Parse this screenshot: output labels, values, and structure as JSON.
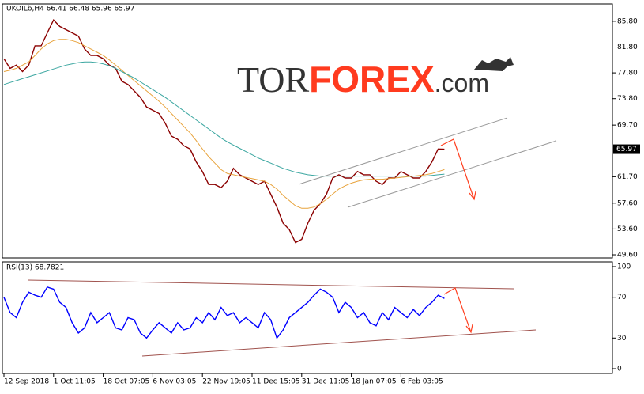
{
  "logo": [
    "TOR",
    "FOREX",
    ".com"
  ],
  "chart_data": [
    {
      "type": "line",
      "title": "UKOILb,H4  66.41 66.48 65.96 65.97",
      "categories": [
        "12 Sep 2018",
        null,
        null,
        null,
        null,
        null,
        null,
        null,
        "1 Oct 11:05",
        null,
        null,
        null,
        null,
        null,
        null,
        null,
        "18 Oct 07:05",
        null,
        null,
        null,
        null,
        null,
        null,
        null,
        "6 Nov 03:05",
        null,
        null,
        null,
        null,
        null,
        null,
        null,
        "22 Nov 19:05",
        null,
        null,
        null,
        null,
        null,
        null,
        null,
        "11 Dec 15:05",
        null,
        null,
        null,
        null,
        null,
        null,
        null,
        "31 Dec 11:05",
        null,
        null,
        null,
        null,
        null,
        null,
        null,
        "18 Jan 07:05",
        null,
        null,
        null,
        null,
        null,
        null,
        null,
        "6 Feb 03:05",
        null,
        null,
        null,
        null,
        null,
        null,
        null
      ],
      "series": [
        {
          "color": "#8b0000",
          "values": [
            80,
            78.5,
            79,
            78,
            79,
            82,
            82,
            84,
            86,
            85,
            84.5,
            84,
            83.5,
            81.5,
            80.5,
            80.5,
            80,
            79,
            78.5,
            76.5,
            76,
            75,
            74,
            72.5,
            72,
            71.5,
            70,
            68,
            67.5,
            66.5,
            66,
            64,
            62.5,
            60.5,
            60.5,
            60,
            61,
            63,
            62,
            61.5,
            61,
            60.5,
            61,
            59,
            57,
            54.5,
            53.5,
            51.5,
            52,
            54.5,
            56.5,
            57.5,
            59,
            61.5,
            62,
            61.5,
            61.5,
            62.5,
            62,
            62,
            61,
            60.5,
            61.5,
            61.5,
            62.5,
            62,
            61.5,
            61.5,
            62.5,
            64,
            66,
            65.97
          ]
        },
        {
          "color": "#e8a33c",
          "values": [
            78,
            78.2,
            78.5,
            79,
            79.5,
            80.5,
            81.5,
            82.3,
            82.8,
            83,
            83,
            82.8,
            82.5,
            82,
            81.5,
            81,
            80.5,
            79.8,
            79,
            78.2,
            77.4,
            76.6,
            75.8,
            75,
            74.2,
            73.4,
            72.5,
            71.5,
            70.5,
            69.5,
            68.5,
            67.3,
            66,
            64.8,
            63.8,
            62.8,
            62.2,
            62,
            61.8,
            61.6,
            61.4,
            61.2,
            61,
            60.5,
            59.8,
            58.8,
            58,
            57.2,
            56.8,
            56.8,
            57,
            57.5,
            58.2,
            59,
            59.8,
            60.3,
            60.7,
            61,
            61.2,
            61.3,
            61.3,
            61.3,
            61.4,
            61.5,
            61.6,
            61.7,
            61.8,
            61.9,
            62,
            62.2,
            62.5,
            62.8
          ]
        },
        {
          "color": "#3aa6a0",
          "values": [
            76,
            76.3,
            76.6,
            76.9,
            77.2,
            77.5,
            77.8,
            78.1,
            78.4,
            78.7,
            79,
            79.2,
            79.4,
            79.5,
            79.5,
            79.4,
            79.2,
            78.9,
            78.5,
            78,
            77.5,
            77,
            76.4,
            75.8,
            75.2,
            74.6,
            74,
            73.3,
            72.6,
            71.9,
            71.2,
            70.5,
            69.8,
            69.1,
            68.4,
            67.7,
            67.1,
            66.6,
            66.1,
            65.6,
            65.1,
            64.6,
            64.2,
            63.8,
            63.4,
            63,
            62.7,
            62.4,
            62.2,
            62,
            61.9,
            61.8,
            61.8,
            61.8,
            61.8,
            61.8,
            61.8,
            61.8,
            61.8,
            61.8,
            61.8,
            61.8,
            61.8,
            61.8,
            61.8,
            61.8,
            61.8,
            61.8,
            61.8,
            61.9,
            62,
            62.1
          ]
        }
      ],
      "ylim": [
        49.1,
        88.5
      ],
      "yticks": [
        {
          "value": 49.6,
          "label": "49.60"
        },
        {
          "value": 53.6,
          "label": "53.60"
        },
        {
          "value": 57.6,
          "label": "57.60"
        },
        {
          "value": 61.7,
          "label": "61.70"
        },
        {
          "value": 69.7,
          "label": "69.70"
        },
        {
          "value": 73.8,
          "label": "73.80"
        },
        {
          "value": 77.8,
          "label": "77.80"
        },
        {
          "value": 81.8,
          "label": "81.80"
        },
        {
          "value": 85.8,
          "label": "85.80"
        }
      ],
      "price_label": {
        "value": 65.97,
        "label": "65.97"
      }
    },
    {
      "type": "line",
      "title": "RSI(13) 68.7821",
      "series": [
        {
          "color": "#0000ff",
          "values": [
            70,
            55,
            50,
            65,
            75,
            72,
            70,
            80,
            78,
            65,
            60,
            45,
            35,
            40,
            55,
            45,
            50,
            55,
            40,
            38,
            50,
            48,
            35,
            30,
            38,
            45,
            40,
            35,
            45,
            38,
            40,
            50,
            45,
            55,
            48,
            60,
            52,
            55,
            45,
            50,
            45,
            40,
            55,
            48,
            30,
            38,
            50,
            55,
            60,
            65,
            72,
            78,
            75,
            70,
            55,
            65,
            60,
            50,
            55,
            45,
            42,
            55,
            48,
            60,
            55,
            50,
            58,
            52,
            60,
            65,
            72,
            68.7821
          ]
        }
      ],
      "ylim": [
        0,
        100
      ],
      "yticks": [
        0,
        30,
        70,
        100
      ]
    }
  ]
}
